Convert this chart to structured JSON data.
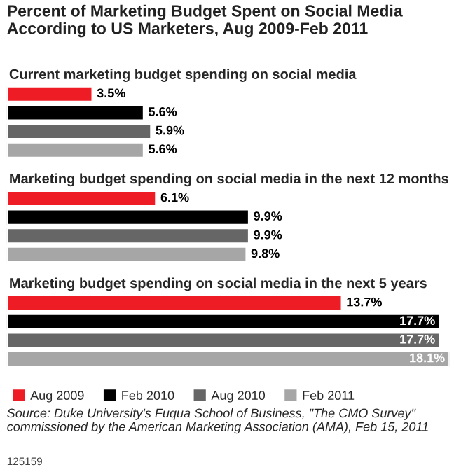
{
  "chart_data": {
    "type": "bar",
    "orientation": "horizontal",
    "title": "Percent of Marketing Budget Spent on Social Media According to US Marketers, Aug 2009-Feb 2011",
    "categories": [
      "Current marketing budget spending on social media",
      "Marketing budget spending on social media in the next 12 months",
      "Marketing budget spending on social media in the next 5 years"
    ],
    "series": [
      {
        "name": "Aug 2009",
        "color": "#ee1c25",
        "values": [
          3.5,
          6.1,
          13.7
        ],
        "value_labels": [
          "3.5%",
          "6.1%",
          "13.7%"
        ]
      },
      {
        "name": "Feb 2010",
        "color": "#000000",
        "values": [
          5.6,
          9.9,
          17.7
        ],
        "value_labels": [
          "5.6%",
          "9.9%",
          "17.7%"
        ]
      },
      {
        "name": "Aug 2010",
        "color": "#666666",
        "values": [
          5.9,
          9.9,
          17.7
        ],
        "value_labels": [
          "5.9%",
          "9.9%",
          "17.7%"
        ]
      },
      {
        "name": "Feb 2011",
        "color": "#a6a6a6",
        "values": [
          5.6,
          9.8,
          18.1
        ],
        "value_labels": [
          "5.6%",
          "9.8%",
          "18.1%"
        ]
      }
    ],
    "legend": "bottom",
    "annotations": [
      "Source: Duke University's Fuqua School of Business, \"The CMO Survey\" commissioned by the American Marketing Association (AMA), Feb 15, 2011",
      "125159"
    ]
  }
}
